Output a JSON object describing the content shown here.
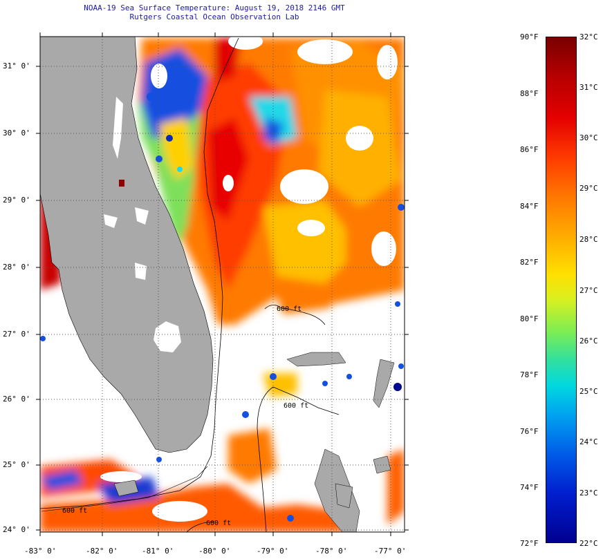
{
  "header": {
    "title": "NOAA-19 Sea Surface Temperature:  August 19, 2018 2146 GMT",
    "subtitle": "Rutgers Coastal Ocean Observation Lab"
  },
  "map": {
    "lat_labels": [
      "31° 0'",
      "30° 0'",
      "29° 0'",
      "28° 0'",
      "27° 0'",
      "26° 0'",
      "25° 0'",
      "24° 0'"
    ],
    "lon_labels": [
      "-83° 0'",
      "-82° 0'",
      "-81° 0'",
      "-80° 0'",
      "-79° 0'",
      "-78° 0'",
      "-77° 0'"
    ],
    "contour_labels": [
      "600 ft",
      "600 ft",
      "600 ft",
      "600 ft"
    ]
  },
  "colorbar": {
    "fahrenheit": [
      "90°F",
      "88°F",
      "86°F",
      "84°F",
      "82°F",
      "80°F",
      "78°F",
      "76°F",
      "74°F",
      "72°F"
    ],
    "celsius": [
      "32°C",
      "31°C",
      "30°C",
      "29°C",
      "28°C",
      "27°C",
      "26°C",
      "25°C",
      "24°C",
      "23°C",
      "22°C"
    ]
  },
  "colors": {
    "land": "#a9a9a9",
    "warm": "#ff3c00",
    "hot": "#e00000",
    "orange": "#ff7a00",
    "yellow": "#ffd000",
    "green": "#7ee05a",
    "cyan": "#20d8e8",
    "blue": "#1450e0",
    "navy": "#000a90",
    "title": "#1a1aa6"
  }
}
